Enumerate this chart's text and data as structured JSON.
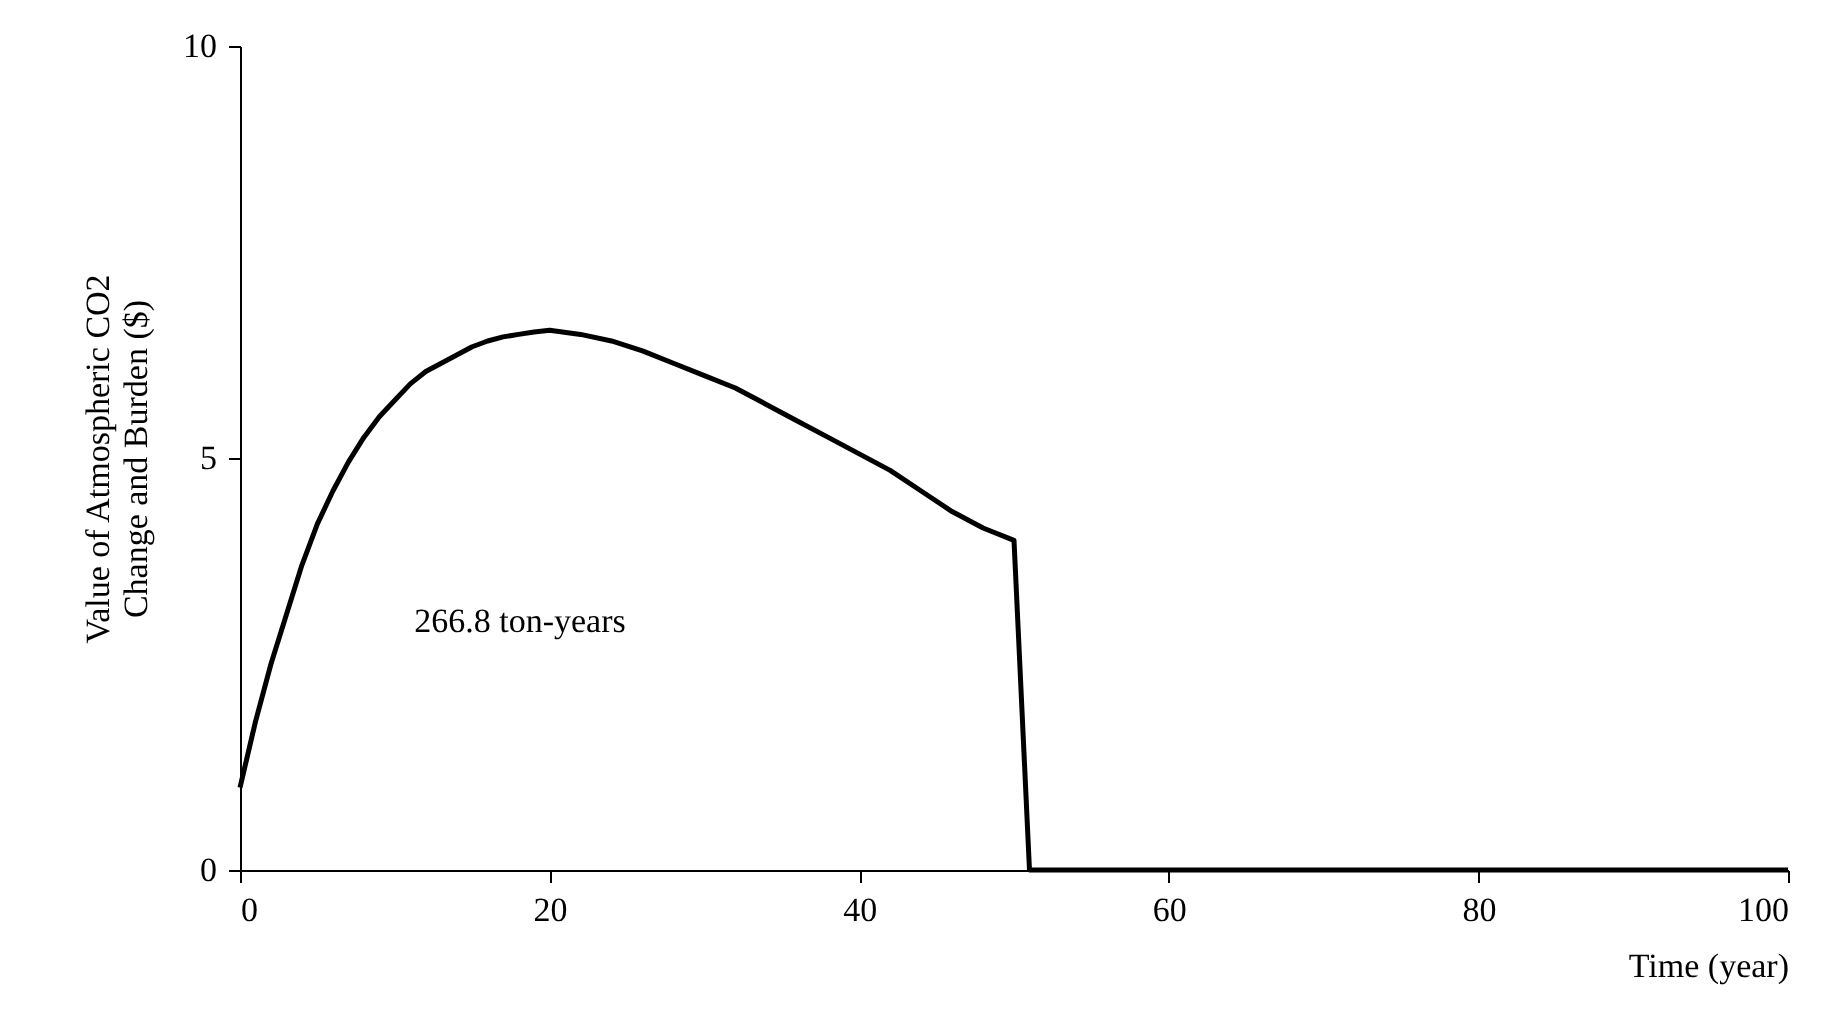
{
  "chart_data": {
    "type": "line",
    "xlabel": "Time (year)",
    "ylabel": "Value of Atmospheric CO2\nChange and Burden ($)",
    "x": [
      0,
      1,
      2,
      3,
      4,
      5,
      6,
      7,
      8,
      9,
      10,
      11,
      12,
      13,
      14,
      15,
      16,
      17,
      18,
      19,
      20,
      22,
      24,
      26,
      28,
      30,
      32,
      34,
      36,
      38,
      40,
      42,
      44,
      46,
      48,
      50,
      51,
      100
    ],
    "series": [
      {
        "color": "#000000",
        "values": [
          1.0,
          1.8,
          2.5,
          3.1,
          3.7,
          4.2,
          4.6,
          4.95,
          5.25,
          5.5,
          5.7,
          5.9,
          6.05,
          6.15,
          6.25,
          6.35,
          6.42,
          6.47,
          6.5,
          6.53,
          6.55,
          6.5,
          6.42,
          6.3,
          6.15,
          6.0,
          5.85,
          5.65,
          5.45,
          5.25,
          5.05,
          4.85,
          4.6,
          4.35,
          4.15,
          4.0,
          0,
          0
        ]
      }
    ],
    "xlim": [
      0,
      100
    ],
    "xticks": [
      0,
      20,
      40,
      60,
      80,
      100
    ],
    "ylim": [
      0,
      10
    ],
    "yticks": [
      0,
      5,
      10
    ],
    "annotations": [
      "266.8 ton-years"
    ],
    "grid": false,
    "marker": "none",
    "line_style": "solid"
  }
}
